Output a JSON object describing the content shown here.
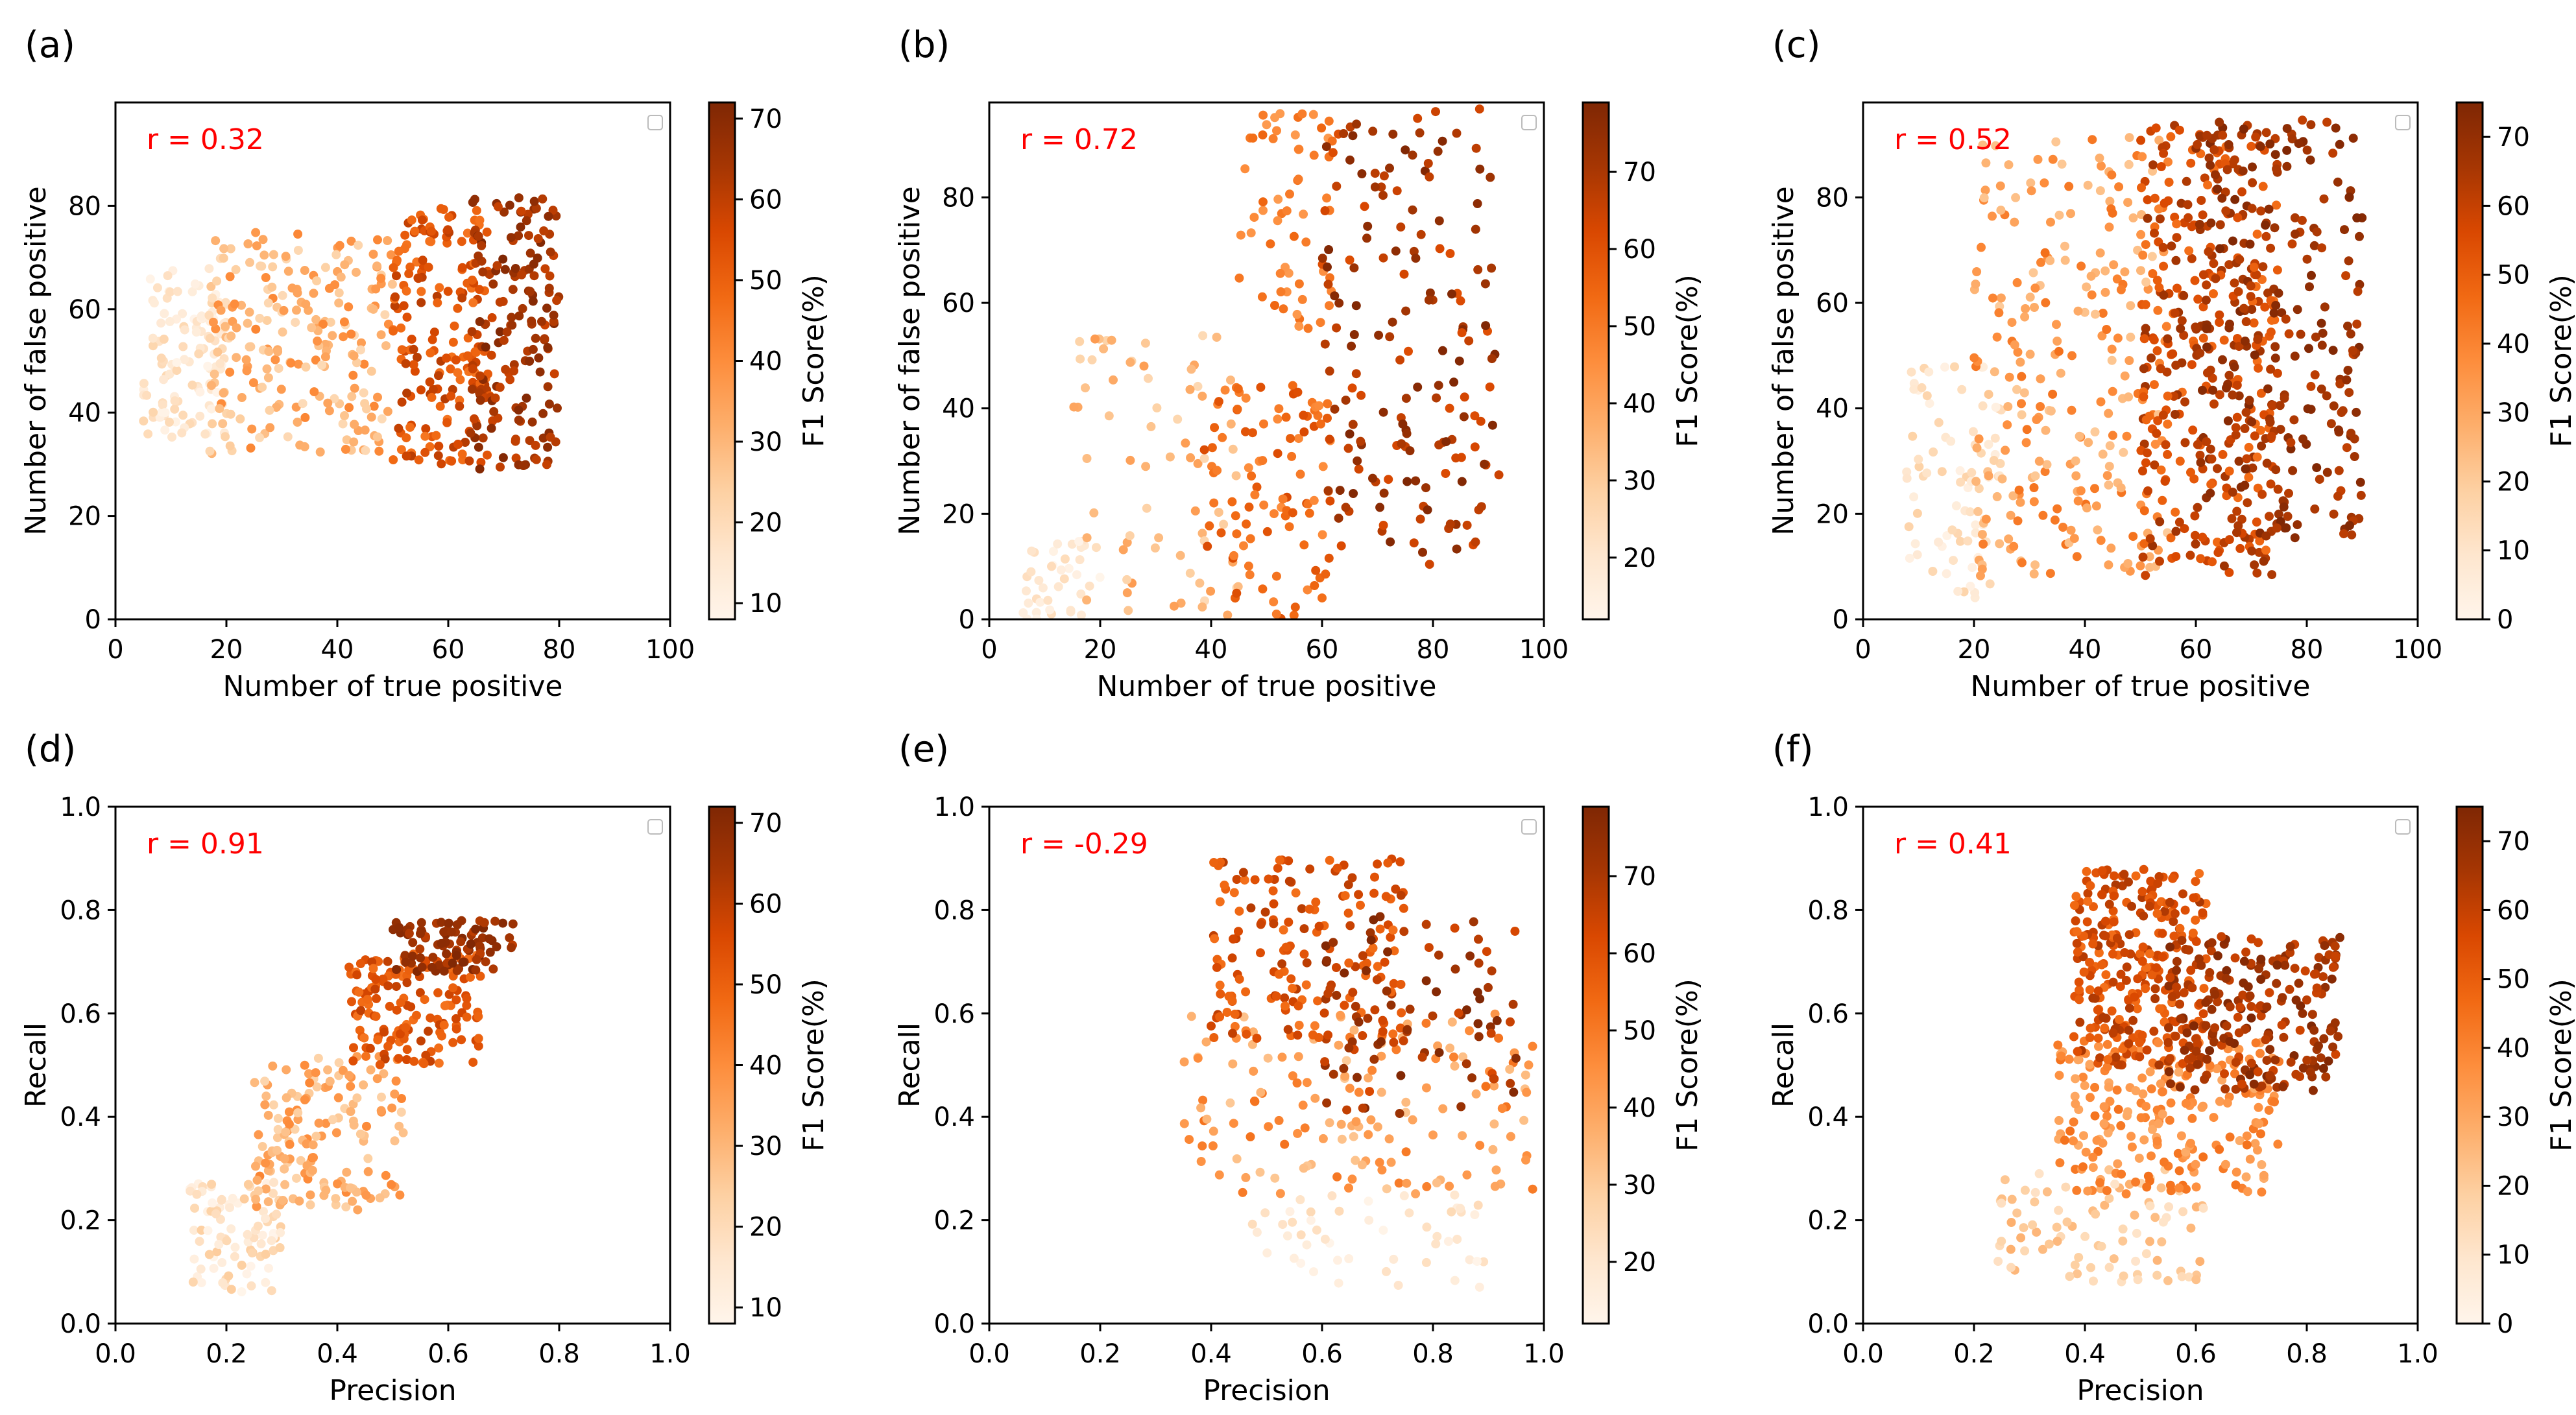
{
  "colors": {
    "cmap": [
      "#fff5eb",
      "#fee6ce",
      "#fdd0a2",
      "#fdae6b",
      "#fd8d3c",
      "#f16913",
      "#d94801",
      "#a63603",
      "#7f2704"
    ],
    "annotation": "#ff0000"
  },
  "chart_data": [
    {
      "panel": "(a)",
      "type": "scatter",
      "xlabel": "Number of true positive",
      "ylabel": "Number of false positive",
      "xlim": [
        0,
        100
      ],
      "ylim": [
        0,
        100
      ],
      "xticks": [
        0,
        20,
        40,
        60,
        80,
        100
      ],
      "yticks": [
        0,
        20,
        40,
        60,
        80
      ],
      "annotation": "r = 0.32",
      "colorbar": {
        "label": "F1 Score(%)",
        "range": [
          8,
          72
        ],
        "ticks": [
          10,
          20,
          30,
          40,
          50,
          60,
          70
        ]
      },
      "clusters": [
        {
          "n": 120,
          "x": [
            5,
            20
          ],
          "y": [
            35,
            68
          ],
          "c": [
            8,
            22
          ]
        },
        {
          "n": 220,
          "x": [
            17,
            50
          ],
          "y": [
            32,
            75
          ],
          "c": [
            20,
            42
          ]
        },
        {
          "n": 190,
          "x": [
            50,
            68
          ],
          "y": [
            30,
            80
          ],
          "c": [
            45,
            62
          ]
        },
        {
          "n": 160,
          "x": [
            64,
            80
          ],
          "y": [
            29,
            82
          ],
          "c": [
            58,
            72
          ]
        }
      ]
    },
    {
      "panel": "(b)",
      "type": "scatter",
      "xlabel": "Number of true positive",
      "ylabel": "Number of false positive",
      "xlim": [
        0,
        100
      ],
      "ylim": [
        0,
        98
      ],
      "xticks": [
        0,
        20,
        40,
        60,
        80,
        100
      ],
      "yticks": [
        0,
        20,
        40,
        60,
        80
      ],
      "annotation": "r = 0.72",
      "colorbar": {
        "label": "F1 Score(%)",
        "range": [
          12,
          79
        ],
        "ticks": [
          20,
          30,
          40,
          50,
          60,
          70
        ]
      },
      "clusters": [
        {
          "n": 40,
          "x": [
            6,
            20
          ],
          "y": [
            0,
            15
          ],
          "c": [
            12,
            24
          ]
        },
        {
          "n": 70,
          "x": [
            15,
            45
          ],
          "y": [
            0,
            55
          ],
          "c": [
            25,
            42
          ]
        },
        {
          "n": 100,
          "x": [
            38,
            62
          ],
          "y": [
            0,
            45
          ],
          "c": [
            45,
            62
          ]
        },
        {
          "n": 60,
          "x": [
            45,
            62
          ],
          "y": [
            55,
            97
          ],
          "c": [
            42,
            55
          ]
        },
        {
          "n": 170,
          "x": [
            60,
            92
          ],
          "y": [
            10,
            97
          ],
          "c": [
            60,
            79
          ]
        }
      ]
    },
    {
      "panel": "(c)",
      "type": "scatter",
      "xlabel": "Number of true positive",
      "ylabel": "Number of false positive",
      "xlim": [
        0,
        100
      ],
      "ylim": [
        0,
        98
      ],
      "xticks": [
        0,
        20,
        40,
        60,
        80,
        100
      ],
      "yticks": [
        0,
        20,
        40,
        60,
        80
      ],
      "annotation": "r = 0.52",
      "colorbar": {
        "label": "F1 Score(%)",
        "range": [
          0,
          75
        ],
        "ticks": [
          0,
          10,
          20,
          30,
          40,
          50,
          60,
          70
        ]
      },
      "clusters": [
        {
          "n": 80,
          "x": [
            7,
            25
          ],
          "y": [
            4,
            48
          ],
          "c": [
            2,
            18
          ]
        },
        {
          "n": 250,
          "x": [
            20,
            55
          ],
          "y": [
            8,
            92
          ],
          "c": [
            20,
            45
          ]
        },
        {
          "n": 320,
          "x": [
            50,
            75
          ],
          "y": [
            8,
            95
          ],
          "c": [
            45,
            68
          ]
        },
        {
          "n": 260,
          "x": [
            60,
            90
          ],
          "y": [
            15,
            95
          ],
          "c": [
            60,
            75
          ]
        }
      ]
    },
    {
      "panel": "(d)",
      "type": "scatter",
      "xlabel": "Precision",
      "ylabel": "Recall",
      "xlim": [
        0,
        1
      ],
      "ylim": [
        0,
        1
      ],
      "xticks": [
        0.0,
        0.2,
        0.4,
        0.6,
        0.8,
        1.0
      ],
      "yticks": [
        0.0,
        0.2,
        0.4,
        0.6,
        0.8,
        1.0
      ],
      "annotation": "r = 0.91",
      "colorbar": {
        "label": "F1 Score(%)",
        "range": [
          8,
          72
        ],
        "ticks": [
          10,
          20,
          30,
          40,
          50,
          60,
          70
        ]
      },
      "clusters": [
        {
          "n": 90,
          "x": [
            0.13,
            0.3
          ],
          "y": [
            0.06,
            0.28
          ],
          "c": [
            8,
            25
          ]
        },
        {
          "n": 160,
          "x": [
            0.25,
            0.52
          ],
          "y": [
            0.22,
            0.52
          ],
          "c": [
            22,
            42
          ]
        },
        {
          "n": 150,
          "x": [
            0.42,
            0.66
          ],
          "y": [
            0.5,
            0.72
          ],
          "c": [
            45,
            60
          ]
        },
        {
          "n": 90,
          "x": [
            0.5,
            0.72
          ],
          "y": [
            0.68,
            0.78
          ],
          "c": [
            60,
            72
          ]
        }
      ]
    },
    {
      "panel": "(e)",
      "type": "scatter",
      "xlabel": "Precision",
      "ylabel": "Recall",
      "xlim": [
        0,
        1
      ],
      "ylim": [
        0,
        1
      ],
      "xticks": [
        0.0,
        0.2,
        0.4,
        0.6,
        0.8,
        1.0
      ],
      "yticks": [
        0.0,
        0.2,
        0.4,
        0.6,
        0.8,
        1.0
      ],
      "annotation": "r = -0.29",
      "colorbar": {
        "label": "F1 Score(%)",
        "range": [
          12,
          79
        ],
        "ticks": [
          20,
          30,
          40,
          50,
          60,
          70
        ]
      },
      "clusters": [
        {
          "n": 50,
          "x": [
            0.45,
            0.9
          ],
          "y": [
            0.07,
            0.25
          ],
          "c": [
            12,
            25
          ]
        },
        {
          "n": 150,
          "x": [
            0.35,
            0.98
          ],
          "y": [
            0.25,
            0.6
          ],
          "c": [
            30,
            52
          ]
        },
        {
          "n": 160,
          "x": [
            0.4,
            0.75
          ],
          "y": [
            0.55,
            0.9
          ],
          "c": [
            52,
            68
          ]
        },
        {
          "n": 90,
          "x": [
            0.6,
            0.95
          ],
          "y": [
            0.4,
            0.8
          ],
          "c": [
            62,
            79
          ]
        }
      ]
    },
    {
      "panel": "(f)",
      "type": "scatter",
      "xlabel": "Precision",
      "ylabel": "Recall",
      "xlim": [
        0,
        1
      ],
      "ylim": [
        0,
        1
      ],
      "xticks": [
        0.0,
        0.2,
        0.4,
        0.6,
        0.8,
        1.0
      ],
      "yticks": [
        0.0,
        0.2,
        0.4,
        0.6,
        0.8,
        1.0
      ],
      "annotation": "r = 0.41",
      "colorbar": {
        "label": "F1 Score(%)",
        "range": [
          0,
          75
        ],
        "ticks": [
          0,
          10,
          20,
          30,
          40,
          50,
          60,
          70
        ]
      },
      "clusters": [
        {
          "n": 90,
          "x": [
            0.24,
            0.62
          ],
          "y": [
            0.08,
            0.3
          ],
          "c": [
            10,
            28
          ]
        },
        {
          "n": 220,
          "x": [
            0.35,
            0.75
          ],
          "y": [
            0.25,
            0.55
          ],
          "c": [
            28,
            45
          ]
        },
        {
          "n": 280,
          "x": [
            0.38,
            0.62
          ],
          "y": [
            0.5,
            0.88
          ],
          "c": [
            45,
            65
          ]
        },
        {
          "n": 220,
          "x": [
            0.55,
            0.86
          ],
          "y": [
            0.45,
            0.75
          ],
          "c": [
            58,
            75
          ]
        }
      ]
    }
  ]
}
